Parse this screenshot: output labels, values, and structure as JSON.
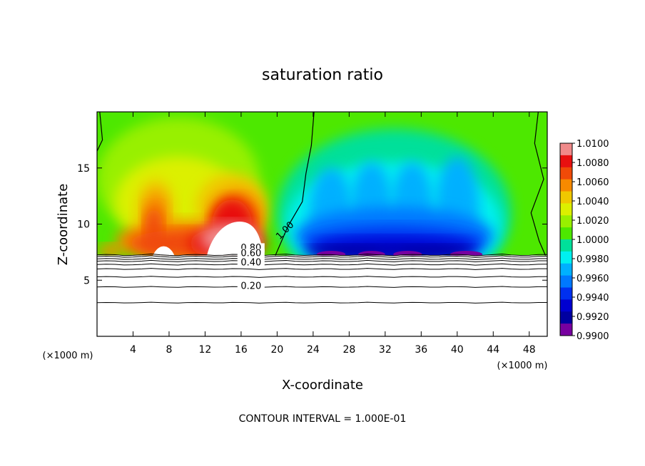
{
  "chart_data": {
    "type": "heatmap",
    "title": "saturation ratio",
    "xlabel": "X-coordinate",
    "ylabel": "Z-coordinate",
    "x_unit": "(×1000 m)",
    "y_unit": "(×1000 m)",
    "xlim": [
      0,
      50
    ],
    "ylim": [
      0,
      20
    ],
    "x_ticks": [
      4,
      8,
      12,
      16,
      20,
      24,
      28,
      32,
      36,
      40,
      44,
      48
    ],
    "x_tick_labels": [
      "4",
      "8",
      "12",
      "16",
      "20",
      "24",
      "28",
      "32",
      "36",
      "40",
      "44",
      "48"
    ],
    "y_ticks": [
      5,
      10,
      15
    ],
    "y_tick_labels": [
      "5",
      "10",
      "15"
    ],
    "color_scale": {
      "min": 0.99,
      "max": 1.01,
      "ticks": [
        1.01,
        1.008,
        1.006,
        1.004,
        1.002,
        1.0,
        0.998,
        0.996,
        0.994,
        0.992,
        0.99
      ],
      "tick_labels": [
        "1.0100",
        "1.0080",
        "1.0060",
        "1.0040",
        "1.0020",
        "1.0000",
        "0.9980",
        "0.9960",
        "0.9940",
        "0.9920",
        "0.9900"
      ],
      "colors": [
        "#f08a8a",
        "#e81010",
        "#f04a08",
        "#f78a00",
        "#f0c800",
        "#dcf000",
        "#98f000",
        "#4de800",
        "#00e09a",
        "#00f0f0",
        "#00b0ff",
        "#0078ff",
        "#0030f0",
        "#0000d0",
        "#0000a0",
        "#7800a0"
      ]
    },
    "shaded_zmin": 7.2,
    "contour_interval_text": "CONTOUR INTERVAL = 1.000E-01",
    "contour_line_labels": [
      "1.00",
      "0.80",
      "0.60",
      "0.40",
      "0.20"
    ],
    "contour_lines_below_cloud": [
      {
        "level": 0.1,
        "z": 3.0
      },
      {
        "level": 0.2,
        "z": 4.4
      },
      {
        "level": 0.3,
        "z": 5.3
      },
      {
        "level": 0.4,
        "z": 6.0
      },
      {
        "level": 0.5,
        "z": 6.4
      },
      {
        "level": 0.6,
        "z": 6.7
      },
      {
        "level": 0.7,
        "z": 6.9
      },
      {
        "level": 0.8,
        "z": 7.1
      },
      {
        "level": 0.9,
        "z": 7.25
      }
    ],
    "sat_ratio_1_contour": [
      [
        19.8,
        7.2
      ],
      [
        21.2,
        9.8
      ],
      [
        22.8,
        12.0
      ],
      [
        23.2,
        14.5
      ],
      [
        23.8,
        17.0
      ],
      [
        24.1,
        20.0
      ]
    ],
    "sat_ratio_1_contour_right": [
      [
        49.0,
        20.0
      ],
      [
        48.6,
        17.2
      ],
      [
        49.6,
        14.0
      ],
      [
        48.2,
        11.0
      ],
      [
        49.1,
        8.5
      ],
      [
        49.8,
        7.2
      ]
    ],
    "supersaturated_regions": [
      {
        "x_range": [
          3,
          19
        ],
        "z_range": [
          7.2,
          14.0
        ],
        "max_value": 1.01
      },
      {
        "x_range": [
          11,
          18
        ],
        "z_range": [
          7.2,
          13.5
        ],
        "max_value": 1.01
      }
    ],
    "subsaturated_regions": [
      {
        "x_range": [
          22,
          46
        ],
        "z_range": [
          7.2,
          15.0
        ],
        "min_value": 0.99
      }
    ]
  }
}
